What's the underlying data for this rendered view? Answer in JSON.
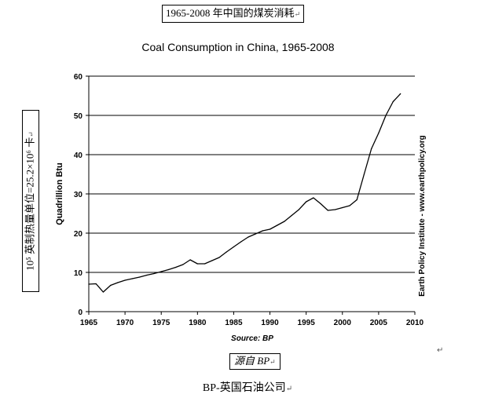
{
  "captions": {
    "top": "1965-2008 年中国的煤炭消耗",
    "side": "10⁵ 英制热量单位=25.2×10⁶ 卡",
    "source": "源自 BP",
    "bottom": "BP-英国石油公司",
    "para_mark": "↵"
  },
  "chart_data": {
    "type": "line",
    "title": "Coal Consumption in China, 1965-2008",
    "xlabel": "",
    "ylabel": "Quadrillion Btu",
    "source_note": "Source: BP",
    "credit": "Earth Policy Institute - www.earthpolicy.org",
    "xlim": [
      1965,
      2010
    ],
    "ylim": [
      0,
      60
    ],
    "xticks": [
      1965,
      1970,
      1975,
      1980,
      1985,
      1990,
      1995,
      2000,
      2005,
      2010
    ],
    "yticks": [
      0,
      10,
      20,
      30,
      40,
      50,
      60
    ],
    "grid": "horizontal",
    "series": [
      {
        "x": [
          1965,
          1966,
          1967,
          1968,
          1969,
          1970,
          1971,
          1972,
          1973,
          1974,
          1975,
          1976,
          1977,
          1978,
          1979,
          1980,
          1981,
          1982,
          1983,
          1984,
          1985,
          1986,
          1987,
          1988,
          1989,
          1990,
          1991,
          1992,
          1993,
          1994,
          1995,
          1996,
          1997,
          1998,
          1999,
          2000,
          2001,
          2002,
          2003,
          2004,
          2005,
          2006,
          2007,
          2008
        ],
        "y": [
          7.0,
          7.1,
          5.0,
          6.7,
          7.4,
          8.0,
          8.4,
          8.8,
          9.3,
          9.7,
          10.2,
          10.7,
          11.3,
          12.0,
          13.2,
          12.2,
          12.2,
          13.0,
          13.8,
          15.2,
          16.5,
          17.8,
          19.0,
          19.8,
          20.6,
          21.0,
          22.0,
          23.0,
          24.5,
          26.0,
          28.0,
          29.0,
          27.5,
          25.8,
          26.0,
          26.5,
          27.0,
          28.5,
          35.0,
          41.5,
          45.5,
          50.0,
          53.5,
          55.5
        ]
      }
    ]
  }
}
